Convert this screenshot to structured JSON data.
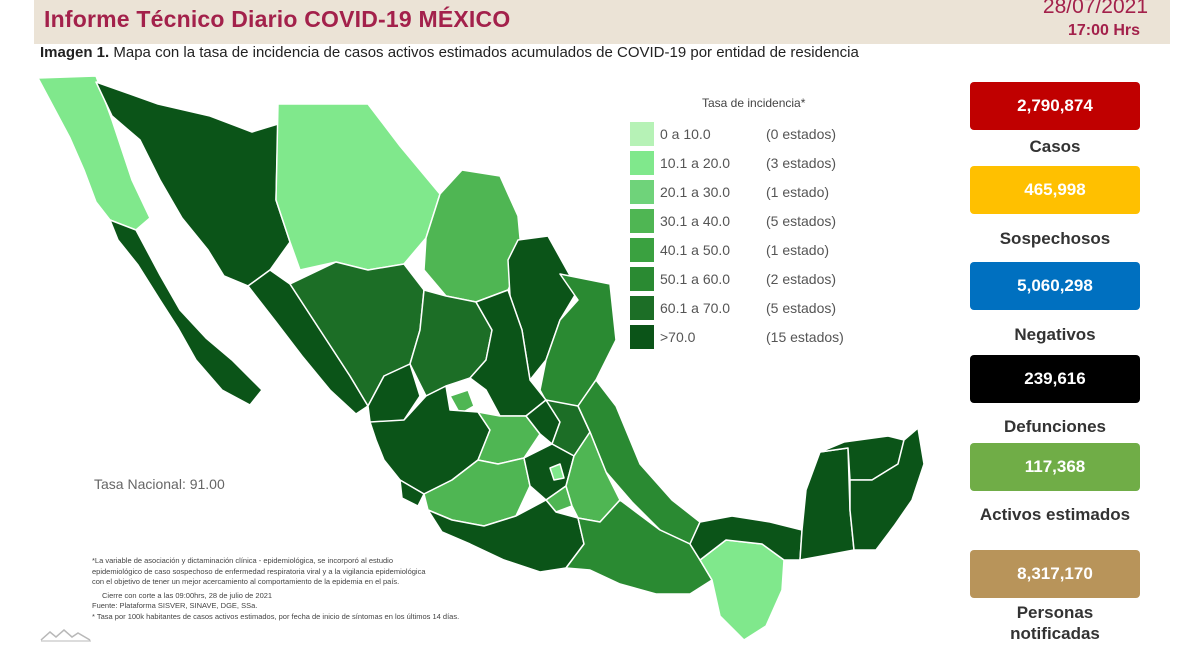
{
  "header": {
    "title": "Informe Técnico Diario COVID-19 MÉXICO",
    "date": "28/07/2021",
    "time": "17:00 Hrs"
  },
  "subtitle": {
    "lead": "Imagen 1.",
    "text": "Mapa con la tasa de incidencia de casos activos estimados acumulados de COVID-19 por entidad de residencia"
  },
  "legend": {
    "title": "Tasa de incidencia*",
    "items": [
      {
        "range": "0    a  10.0",
        "count": "(0 estados)",
        "color": "#b6f2b6"
      },
      {
        "range": "10.1 a  20.0",
        "count": "(3 estados)",
        "color": "#80e88c"
      },
      {
        "range": "20.1 a  30.0",
        "count": "(1 estado)",
        "color": "#6fd37a"
      },
      {
        "range": "30.1 a  40.0",
        "count": "(5 estados)",
        "color": "#4fb653"
      },
      {
        "range": "40.1 a  50.0",
        "count": "(1 estado)",
        "color": "#3aa140"
      },
      {
        "range": "50.1 a  60.0",
        "count": "(2 estados)",
        "color": "#2a8a32"
      },
      {
        "range": "60.1 a  70.0",
        "count": "(5 estados)",
        "color": "#1c6e26"
      },
      {
        "range": ">70.0",
        "count": "(15 estados)",
        "color": "#0b5418"
      }
    ]
  },
  "national_rate": "Tasa Nacional: 91.00",
  "notes": [
    "*La variable de asociación y dictaminación clínica - epidemiológica, se incorporó al estudio",
    "epidemiológico de caso sospechoso de enfermedad respiratoria viral y a la vigilancia epidemiológica",
    "con el objetivo de tener un mejor acercamiento al comportamiento de la epidemia en el país.",
    "Cierre con corte a las 09:00hrs, 28 de julio de 2021",
    "Fuente: Plataforma SISVER, SINAVE, DGE, SSa.",
    "* Tasa por 100k habitantes de casos activos estimados, por fecha de inicio de síntomas en los últimos 14 días."
  ],
  "stats": [
    {
      "value": "2,790,874",
      "label": "Casos",
      "color": "#c00000"
    },
    {
      "value": "465,998",
      "label": "Sospechosos",
      "color": "#ffc000"
    },
    {
      "value": "5,060,298",
      "label": "Negativos",
      "color": "#0070c0"
    },
    {
      "value": "239,616",
      "label": "Defunciones",
      "color": "#000000"
    },
    {
      "value": "117,368",
      "label": "Activos estimados",
      "color": "#70ad47"
    },
    {
      "value": "8,317,170",
      "label": "Personas notificadas",
      "color": "#b8945a"
    }
  ],
  "map_colors": {
    "dark": "#0b5418",
    "mid_dark": "#1c6e26",
    "mid": "#2a8a32",
    "medium": "#4fb653",
    "light": "#80e88c",
    "border": "#ffffff"
  }
}
